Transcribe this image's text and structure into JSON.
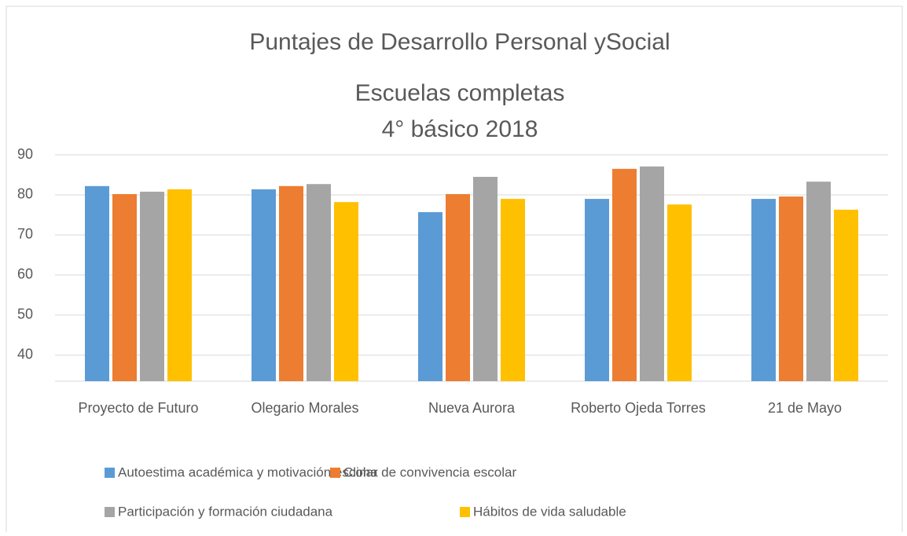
{
  "chart_data": {
    "type": "bar",
    "title": "Puntajes de Desarrollo Personal ySocial",
    "subtitle": [
      "Escuelas completas",
      "4° básico 2018"
    ],
    "categories": [
      "Proyecto de Futuro",
      "Olegario Morales",
      "Nueva Aurora",
      "Roberto Ojeda Torres",
      "21 de Mayo"
    ],
    "series": [
      {
        "name": "Autoestima académica y motivación escolar",
        "color": "#5b9bd5",
        "values": [
          82.2,
          81.4,
          75.7,
          79.0,
          79.0
        ]
      },
      {
        "name": "Clima de convivencia escolar",
        "color": "#ed7d31",
        "values": [
          80.2,
          82.2,
          80.2,
          86.5,
          79.6
        ]
      },
      {
        "name": "Participación y formación ciudadana",
        "color": "#a5a5a5",
        "values": [
          80.8,
          82.7,
          84.5,
          87.1,
          83.3
        ]
      },
      {
        "name": "Hábitos de vida saludable",
        "color": "#ffc000",
        "values": [
          81.4,
          78.2,
          79.0,
          77.6,
          76.3
        ]
      }
    ],
    "ylim": [
      33.5,
      90
    ],
    "yticks": [
      40,
      50,
      60,
      70,
      80,
      90
    ],
    "grid": true,
    "legend": "bottom"
  }
}
